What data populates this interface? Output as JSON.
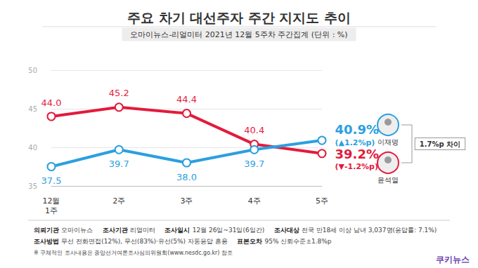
{
  "chart_data": {
    "type": "line",
    "title": "주요 차기 대선주자 주간 지지도 추이",
    "subtitle": "오마이뉴스-리얼미터 2021년 12월 5주차 주간집계 (단위 : %)",
    "categories": [
      "12월\n1주",
      "2주",
      "3주",
      "4주",
      "5주"
    ],
    "series": [
      {
        "name": "윤석열",
        "color": "#e31b3c",
        "marker": "circle",
        "values": [
          44.0,
          45.2,
          44.4,
          40.4,
          39.2
        ],
        "value_labels": [
          "44.0",
          "45.2",
          "44.4",
          "40.4",
          "39.2%"
        ],
        "change_label": "(▼-1.2%p)"
      },
      {
        "name": "이재명",
        "color": "#2c9fe0",
        "marker": "circle",
        "values": [
          37.5,
          39.7,
          38.0,
          39.7,
          40.9
        ],
        "value_labels": [
          "37.5",
          "39.7",
          "38.0",
          "39.7",
          "40.9%"
        ],
        "change_label": "(▲1.2%p)"
      }
    ],
    "ylim": [
      35,
      50
    ],
    "yticks": [
      35,
      40,
      45,
      50
    ],
    "grid": true,
    "data_labels": true,
    "annotations": [
      "1.7%p 차이"
    ],
    "footer": [
      [
        [
          "의뢰기관",
          "오마이뉴스"
        ],
        [
          "조사기관",
          "리얼미터"
        ],
        [
          "조사일시",
          "12월 26일~31일(6일간)"
        ],
        [
          "조사대상",
          "전국 만18세 이상 남녀 3,037명(응답률: 7.1%)"
        ]
      ],
      [
        [
          "조사방법",
          "무선 전화면접(12%), 무선(83%)·유선(5%) 자동응답 혼용"
        ],
        [
          "표본오차",
          "95% 신뢰수준±1.8%p"
        ]
      ],
      [
        [
          "",
          "※ 구체적인 조사내용은 중앙선거여론조사심의위원회(www.nesdc.go.kr) 참조"
        ]
      ]
    ],
    "source": "쿠키뉴스"
  }
}
